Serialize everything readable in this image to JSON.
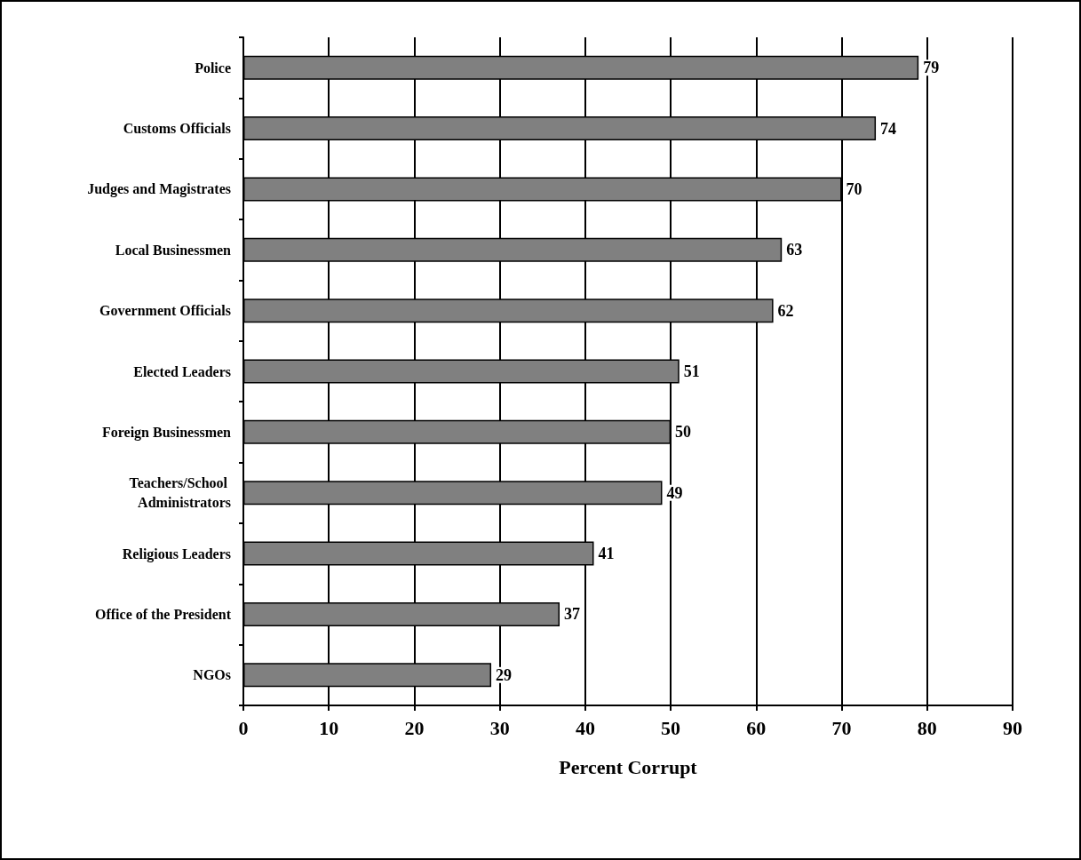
{
  "chart_data": {
    "type": "bar",
    "orientation": "horizontal",
    "xlabel": "Percent Corrupt",
    "categories": [
      "Police",
      "Customs Officials",
      "Judges and Magistrates",
      "Local Businessmen",
      "Government Officials",
      "Elected Leaders",
      "Foreign Businessmen",
      "Teachers/School Administrators",
      "Religious Leaders",
      "Office of the President",
      "NGOs"
    ],
    "values": [
      79,
      74,
      70,
      63,
      62,
      51,
      50,
      49,
      41,
      37,
      29
    ],
    "color": "#808080",
    "xlim": [
      0,
      90
    ],
    "xticks": [
      0,
      10,
      20,
      30,
      40,
      50,
      60,
      70,
      80,
      90
    ],
    "grid": "x",
    "data_labels": true
  }
}
